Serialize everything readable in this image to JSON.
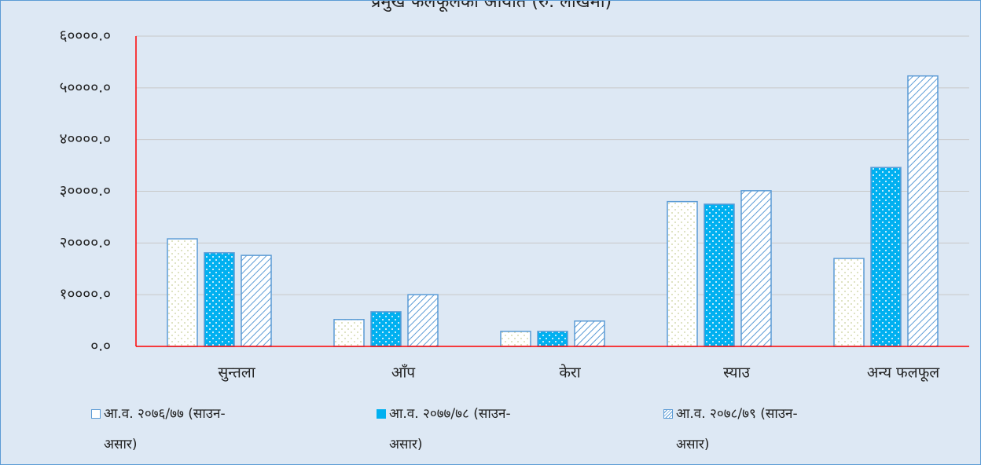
{
  "chart_data": {
    "type": "bar",
    "title": "प्रमुख फलफूलको आयात (रु. लाखमा)",
    "categories": [
      "सुन्तला",
      "आँप",
      "केरा",
      "स्याउ",
      "अन्य फलफूल"
    ],
    "series": [
      {
        "name": "आ.व. २०७६/७७ (साउन-असार)",
        "color": "#5b9bd5",
        "pattern": "dots-light",
        "values": [
          20800,
          5200,
          2900,
          28000,
          17000
        ]
      },
      {
        "name": "आ.व. २०७७/७८ (साउन-असार)",
        "color": "#00b0f0",
        "pattern": "dots-dark",
        "values": [
          18100,
          6700,
          2900,
          27500,
          34600
        ]
      },
      {
        "name": "आ.व. २०७८/७९ (साउन-असार)",
        "color": "#5b9bd5",
        "pattern": "hatch",
        "values": [
          17600,
          10000,
          4900,
          30100,
          52300
        ]
      }
    ],
    "ylim": [
      0,
      60000
    ],
    "yticks": [
      {
        "value": 0,
        "label": "०.०"
      },
      {
        "value": 10000,
        "label": "१००००.०"
      },
      {
        "value": 20000,
        "label": "२००००.०"
      },
      {
        "value": 30000,
        "label": "३००००.०"
      },
      {
        "value": 40000,
        "label": "४००००.०"
      },
      {
        "value": 50000,
        "label": "५००००.०"
      },
      {
        "value": 60000,
        "label": "६००००.०"
      }
    ],
    "grid": true
  }
}
